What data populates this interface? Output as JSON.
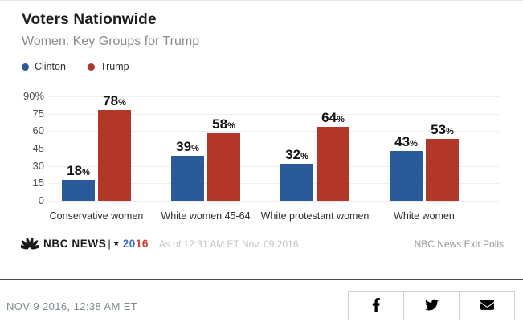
{
  "header": {
    "title": "Voters Nationwide",
    "subtitle": "Women: Key Groups for Trump"
  },
  "chart_data": {
    "type": "bar",
    "categories": [
      "Conservative women",
      "White women 45-64",
      "White protestant women",
      "White women"
    ],
    "series": [
      {
        "name": "Clinton",
        "color": "#2b5a9b",
        "values": [
          18,
          39,
          32,
          43
        ]
      },
      {
        "name": "Trump",
        "color": "#b23728",
        "values": [
          78,
          58,
          64,
          53
        ]
      }
    ],
    "value_suffix": "%",
    "ylim": [
      0,
      90
    ],
    "yticks": [
      {
        "label": "90%",
        "value": 90
      },
      {
        "label": "75",
        "value": 75
      },
      {
        "label": "60",
        "value": 60
      },
      {
        "label": "45",
        "value": 45
      },
      {
        "label": "30",
        "value": 30
      },
      {
        "label": "15",
        "value": 15
      },
      {
        "label": "0",
        "value": 0
      }
    ],
    "grid": true,
    "legend_position": "top-left"
  },
  "brand_bar": {
    "brand": "NBC NEWS",
    "separator": "|",
    "star": "★",
    "year_blue": "20",
    "year_red": "16",
    "year_blue_color": "#3b6fb4",
    "year_red_color": "#d23b31",
    "as_of": "As of 12:31 AM ET Nov. 09 2016",
    "source": "NBC News Exit Polls"
  },
  "article": {
    "timestamp": "NOV 9 2016, 12:38 AM ET"
  },
  "share": {
    "buttons": [
      {
        "icon": "facebook-icon"
      },
      {
        "icon": "twitter-icon"
      },
      {
        "icon": "email-icon"
      }
    ]
  }
}
